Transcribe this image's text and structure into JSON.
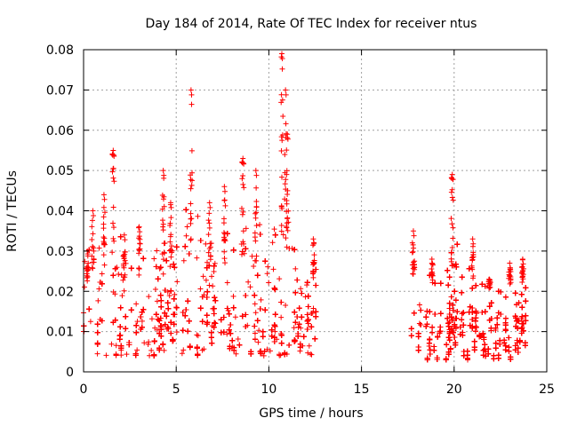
{
  "chart_data": {
    "type": "scatter",
    "title": "Day 184 of 2014, Rate Of TEC Index for receiver ntus",
    "xlabel": "GPS time / hours",
    "ylabel": "ROTI / TECUs",
    "xlim": [
      0,
      25
    ],
    "ylim": [
      0,
      0.08
    ],
    "xticks": [
      0,
      5,
      10,
      15,
      20,
      25
    ],
    "yticks": [
      0,
      0.01,
      0.02,
      0.03,
      0.04,
      0.05,
      0.06,
      0.07,
      0.08
    ],
    "xtick_labels": [
      "0",
      "5",
      "10",
      "15",
      "20",
      "25"
    ],
    "ytick_labels": [
      "0",
      "0.01",
      "0.02",
      "0.03",
      "0.04",
      "0.05",
      "0.06",
      "0.07",
      "0.08"
    ],
    "grid": true,
    "marker": "+",
    "color": "#ff0000",
    "series": [
      {
        "name": "ROTI",
        "segments": [
          {
            "x_range": [
              0.0,
              12.6
            ],
            "typical_range": [
              0.004,
              0.025
            ],
            "max": 0.079
          },
          {
            "x_range": [
              17.7,
              23.9
            ],
            "typical_range": [
              0.003,
              0.02
            ],
            "max": 0.049
          }
        ],
        "peaks": [
          [
            0.2,
            0.03
          ],
          [
            0.5,
            0.04
          ],
          [
            1.1,
            0.044
          ],
          [
            1.6,
            0.055
          ],
          [
            2.2,
            0.034
          ],
          [
            3.0,
            0.036
          ],
          [
            4.3,
            0.05
          ],
          [
            4.7,
            0.042
          ],
          [
            5.8,
            0.07
          ],
          [
            6.8,
            0.042
          ],
          [
            7.6,
            0.046
          ],
          [
            8.6,
            0.053
          ],
          [
            9.3,
            0.05
          ],
          [
            10.7,
            0.079
          ],
          [
            10.9,
            0.07
          ],
          [
            11.0,
            0.059
          ],
          [
            12.4,
            0.033
          ],
          [
            17.8,
            0.035
          ],
          [
            18.8,
            0.028
          ],
          [
            19.9,
            0.049
          ],
          [
            21.0,
            0.033
          ],
          [
            21.9,
            0.023
          ],
          [
            23.0,
            0.027
          ],
          [
            23.7,
            0.028
          ]
        ]
      }
    ]
  }
}
